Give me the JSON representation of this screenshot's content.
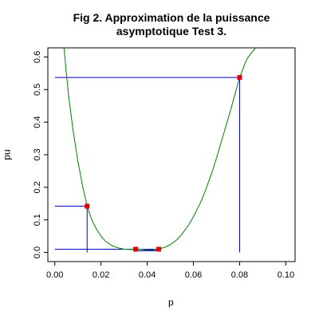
{
  "chart_data": {
    "type": "line",
    "title_lines": [
      "Fig 2. Approximation de la puissance",
      "asymptotique Test 3."
    ],
    "xlabel": "p",
    "ylabel": "pu",
    "xlim": [
      -0.003,
      0.104
    ],
    "ylim": [
      -0.028,
      0.628
    ],
    "x_ticks": [
      0.0,
      0.02,
      0.04,
      0.06,
      0.08,
      0.1
    ],
    "x_tick_labels": [
      "0.00",
      "0.02",
      "0.04",
      "0.06",
      "0.08",
      "0.10"
    ],
    "y_ticks": [
      0.0,
      0.1,
      0.2,
      0.3,
      0.4,
      0.5,
      0.6
    ],
    "y_tick_labels": [
      "0.0",
      "0.1",
      "0.2",
      "0.3",
      "0.4",
      "0.5",
      "0.6"
    ],
    "series": [
      {
        "color": "#008000",
        "x": [
          0.004,
          0.005,
          0.006,
          0.008,
          0.01,
          0.012,
          0.014,
          0.016,
          0.018,
          0.02,
          0.022,
          0.025,
          0.028,
          0.03,
          0.033,
          0.035,
          0.038,
          0.04,
          0.043,
          0.045,
          0.048,
          0.05,
          0.053,
          0.055,
          0.058,
          0.06,
          0.063,
          0.065,
          0.068,
          0.07,
          0.073,
          0.075,
          0.078,
          0.08,
          0.083,
          0.085,
          0.087
        ],
        "y": [
          0.628,
          0.55,
          0.48,
          0.37,
          0.28,
          0.205,
          0.142,
          0.1,
          0.072,
          0.05,
          0.034,
          0.02,
          0.013,
          0.01,
          0.009,
          0.01,
          0.009,
          0.007,
          0.008,
          0.01,
          0.017,
          0.024,
          0.04,
          0.056,
          0.085,
          0.11,
          0.152,
          0.186,
          0.245,
          0.29,
          0.362,
          0.41,
          0.485,
          0.537,
          0.592,
          0.612,
          0.628
        ]
      }
    ],
    "points": {
      "color": "#e00000",
      "x": [
        0.014,
        0.035,
        0.045,
        0.08
      ],
      "y": [
        0.142,
        0.01,
        0.01,
        0.537
      ]
    },
    "reference_lines": {
      "color": "#0000cc",
      "segments": [
        {
          "x1": 0.0,
          "y1": 0.537,
          "x2": 0.08,
          "y2": 0.537
        },
        {
          "x1": 0.08,
          "y1": 0.537,
          "x2": 0.08,
          "y2": 0.0
        },
        {
          "x1": 0.0,
          "y1": 0.142,
          "x2": 0.014,
          "y2": 0.142
        },
        {
          "x1": 0.014,
          "y1": 0.142,
          "x2": 0.014,
          "y2": 0.0
        },
        {
          "x1": 0.0,
          "y1": 0.01,
          "x2": 0.045,
          "y2": 0.01
        },
        {
          "x1": 0.035,
          "y1": 0.005,
          "x2": 0.045,
          "y2": 0.005
        }
      ]
    }
  }
}
